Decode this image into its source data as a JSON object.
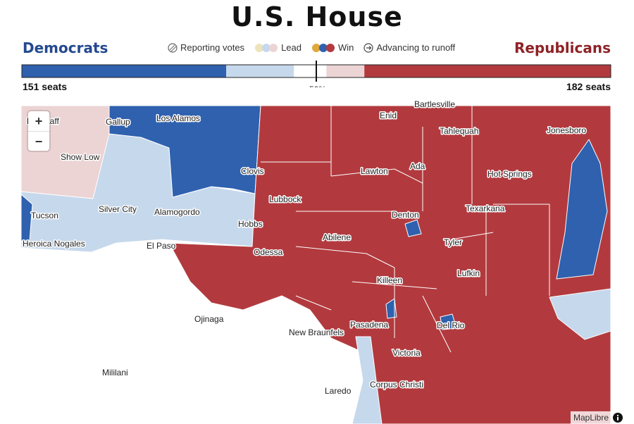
{
  "header": {
    "title": "U.S. House"
  },
  "parties": {
    "left": {
      "name": "Democrats",
      "seats": "151 seats"
    },
    "right": {
      "name": "Republicans",
      "seats": "182 seats"
    }
  },
  "legend": [
    "Reporting votes",
    "Lead",
    "Win",
    "Advancing to runoff"
  ],
  "seat_bar": {
    "segments": [
      {
        "value": 151,
        "color": "#2f61ae"
      },
      {
        "value": 50,
        "color": "#c6d8ec"
      },
      {
        "value": 24,
        "color": "#ffffff"
      },
      {
        "value": 28,
        "color": "#ecd4d4"
      },
      {
        "value": 182,
        "color": "#b23a3e"
      }
    ],
    "majority_label": "50%"
  },
  "map": {
    "labels": [
      "Flagstaff",
      "Gallup",
      "Los Alamos",
      "Show Low",
      "Clovis",
      "Tucson",
      "Silver City",
      "Alamogordo",
      "Hobbs",
      "Heroica Nogales",
      "El Paso",
      "Lubbock",
      "Odessa",
      "Abilene",
      "Bartlesville",
      "Enid",
      "Tahlequah",
      "Jonesboro",
      "Lawton",
      "Ada",
      "Hot Springs",
      "Texarkana",
      "Denton",
      "Tyler",
      "Lufkin",
      "Killeen",
      "Ojinaga",
      "New Braunfels",
      "Pasadena",
      "Del Rio",
      "Victoria",
      "Mililani",
      "Laredo",
      "Corpus Christi"
    ],
    "zoom_in": "+",
    "zoom_out": "−",
    "attribution": "MapLibre"
  }
}
